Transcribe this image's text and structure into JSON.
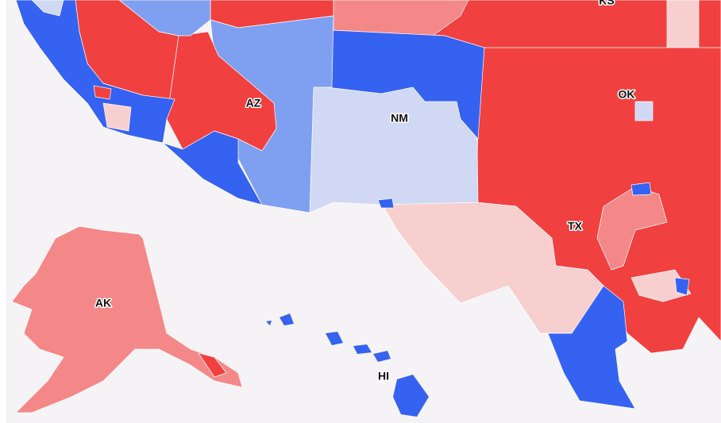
{
  "state_labels": [
    "KS",
    "AZ",
    "NM",
    "OK",
    "TX",
    "AK",
    "HI"
  ]
}
